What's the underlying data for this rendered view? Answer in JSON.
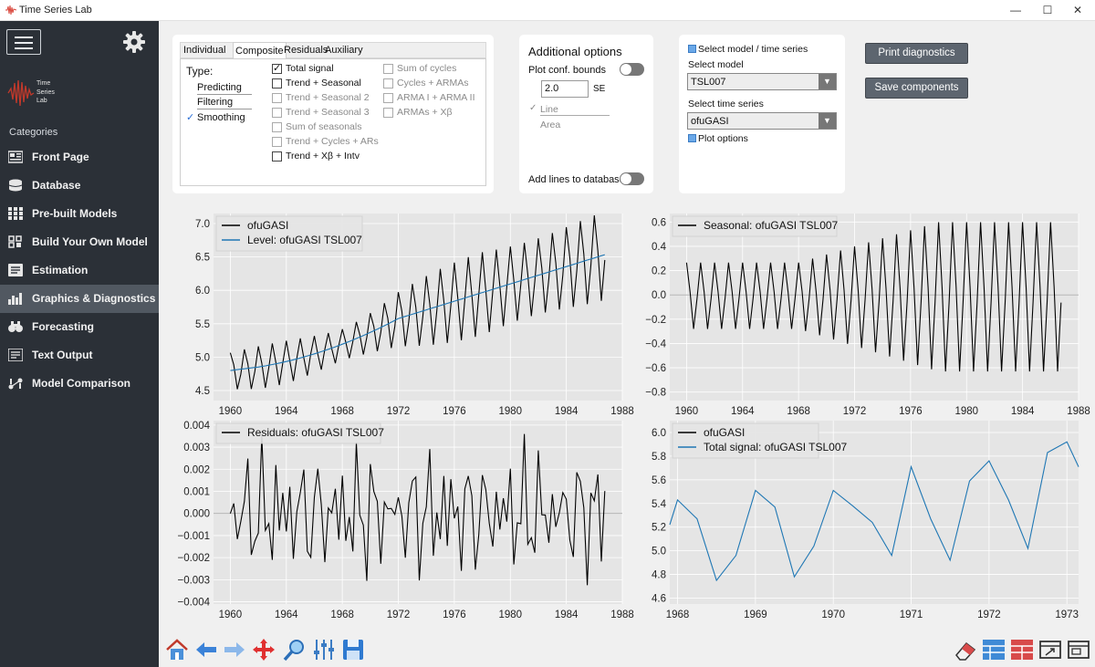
{
  "app": {
    "title": "Time Series Lab",
    "logo_text": [
      "Time",
      "Series",
      "Lab"
    ]
  },
  "window_controls": {
    "minimize": "—",
    "maximize": "☐",
    "close": "✕"
  },
  "sidebar": {
    "categories_title": "Categories",
    "items": [
      {
        "label": "Front Page",
        "icon": "front-page-icon"
      },
      {
        "label": "Database",
        "icon": "database-icon"
      },
      {
        "label": "Pre-built Models",
        "icon": "grid-icon"
      },
      {
        "label": "Build Your Own Model",
        "icon": "build-icon"
      },
      {
        "label": "Estimation",
        "icon": "estimation-icon"
      },
      {
        "label": "Graphics & Diagnostics",
        "icon": "bar-chart-icon",
        "active": true
      },
      {
        "label": "Forecasting",
        "icon": "binoculars-icon"
      },
      {
        "label": "Text Output",
        "icon": "text-output-icon"
      },
      {
        "label": "Model Comparison",
        "icon": "comparison-icon"
      }
    ]
  },
  "plot_panel": {
    "tabs": [
      "Individual",
      "Composite",
      "Residuals",
      "Auxiliary"
    ],
    "active_tab": "Composite",
    "type_label": "Type:",
    "type_options": [
      "Predicting",
      "Filtering",
      "Smoothing"
    ],
    "type_selected": "Smoothing",
    "checks_col1": [
      {
        "label": "Total signal",
        "checked": true,
        "enabled": true
      },
      {
        "label": "Trend + Seasonal",
        "checked": false,
        "enabled": true
      },
      {
        "label": "Trend + Seasonal 2",
        "checked": false,
        "enabled": false
      },
      {
        "label": "Trend + Seasonal 3",
        "checked": false,
        "enabled": false
      },
      {
        "label": "Sum of seasonals",
        "checked": false,
        "enabled": false
      },
      {
        "label": "Trend + Cycles + ARs",
        "checked": false,
        "enabled": false
      },
      {
        "label": "Trend + Xβ + Intv",
        "checked": false,
        "enabled": true
      }
    ],
    "checks_col2": [
      {
        "label": "Sum of cycles",
        "checked": false,
        "enabled": false
      },
      {
        "label": "Cycles + ARMAs",
        "checked": false,
        "enabled": false
      },
      {
        "label": "ARMA I + ARMA II",
        "checked": false,
        "enabled": false
      },
      {
        "label": "ARMAs + Xβ",
        "checked": false,
        "enabled": false
      }
    ]
  },
  "additional": {
    "title": "Additional options",
    "conf_bounds_label": "Plot conf. bounds",
    "se_value": "2.0",
    "se_unit": "SE",
    "line_label": "Line",
    "area_label": "Area",
    "add_lines_label": "Add lines to database"
  },
  "model_select": {
    "header": "Select model / time series",
    "model_label": "Select model",
    "model_value": "TSL007",
    "series_label": "Select time series",
    "series_value": "ofuGASI",
    "plot_options": "Plot options"
  },
  "buttons": {
    "print": "Print diagnostics",
    "save": "Save components"
  },
  "colors": {
    "sidebar_bg": "#2b3037",
    "active_item": "#515861",
    "plot_bg": "#e5e5e5",
    "series_blue": "#1f77b4"
  },
  "toolbar_left": [
    "home-icon",
    "back-arrow-icon",
    "forward-arrow-icon",
    "pan-icon",
    "zoom-icon",
    "sliders-icon",
    "save-icon"
  ],
  "toolbar_right": [
    "eraser-icon",
    "layout-icon-1",
    "layout-icon-2",
    "layout-icon-3",
    "layout-icon-4"
  ],
  "chart_data": [
    {
      "type": "line",
      "xlim": [
        1958.8,
        1988
      ],
      "ylim": [
        4.35,
        7.15
      ],
      "xticks": [
        "1960",
        "1964",
        "1968",
        "1972",
        "1976",
        "1980",
        "1984",
        "1988"
      ],
      "yticks": [
        "4.5",
        "5.0",
        "5.5",
        "6.0",
        "6.5",
        "7.0"
      ],
      "series": [
        {
          "name": "ofuGASI",
          "color": "#000000"
        },
        {
          "name": "Level: ofuGASI TSL007",
          "color": "#1f77b4"
        }
      ]
    },
    {
      "type": "line",
      "xlim": [
        1958.8,
        1988
      ],
      "ylim": [
        -0.87,
        0.67
      ],
      "xticks": [
        "1960",
        "1964",
        "1968",
        "1972",
        "1976",
        "1980",
        "1984",
        "1988"
      ],
      "yticks": [
        "0.6",
        "0.4",
        "0.2",
        "0.0",
        "−0.2",
        "−0.4",
        "−0.6",
        "−0.8"
      ],
      "series": [
        {
          "name": "Seasonal: ofuGASI TSL007",
          "color": "#000000"
        }
      ]
    },
    {
      "type": "line",
      "xlim": [
        1958.8,
        1988
      ],
      "ylim": [
        -0.0041,
        0.0042
      ],
      "xticks": [
        "1960",
        "1964",
        "1968",
        "1972",
        "1976",
        "1980",
        "1984",
        "1988"
      ],
      "yticks": [
        "0.004",
        "0.003",
        "0.002",
        "0.001",
        "0.000",
        "−0.001",
        "−0.002",
        "−0.003",
        "−0.004"
      ],
      "series": [
        {
          "name": "Residuals: ofuGASI TSL007",
          "color": "#000000"
        }
      ]
    },
    {
      "type": "line",
      "xlim": [
        1967.9,
        1973.15
      ],
      "ylim": [
        4.55,
        6.1
      ],
      "xticks": [
        "1968",
        "1969",
        "1970",
        "1971",
        "1972",
        "1973"
      ],
      "yticks": [
        "6.0",
        "5.8",
        "5.6",
        "5.4",
        "5.2",
        "5.0",
        "4.8",
        "4.6"
      ],
      "series": [
        {
          "name": "ofuGASI",
          "color": "#000000"
        },
        {
          "name": "Total signal: ofuGASI TSL007",
          "color": "#1f77b4",
          "x": [
            1967.9,
            1968.0,
            1968.25,
            1968.5,
            1968.75,
            1969.0,
            1969.25,
            1969.5,
            1969.75,
            1970.0,
            1970.25,
            1970.5,
            1970.75,
            1971.0,
            1971.25,
            1971.5,
            1971.75,
            1972.0,
            1972.25,
            1972.5,
            1972.75,
            1973.0,
            1973.15
          ],
          "values": [
            5.22,
            5.43,
            5.27,
            4.75,
            4.96,
            5.51,
            5.37,
            4.78,
            5.04,
            5.51,
            5.38,
            5.24,
            4.96,
            5.71,
            5.27,
            4.92,
            5.59,
            5.76,
            5.43,
            5.02,
            5.83,
            5.92,
            5.71
          ]
        }
      ]
    }
  ]
}
